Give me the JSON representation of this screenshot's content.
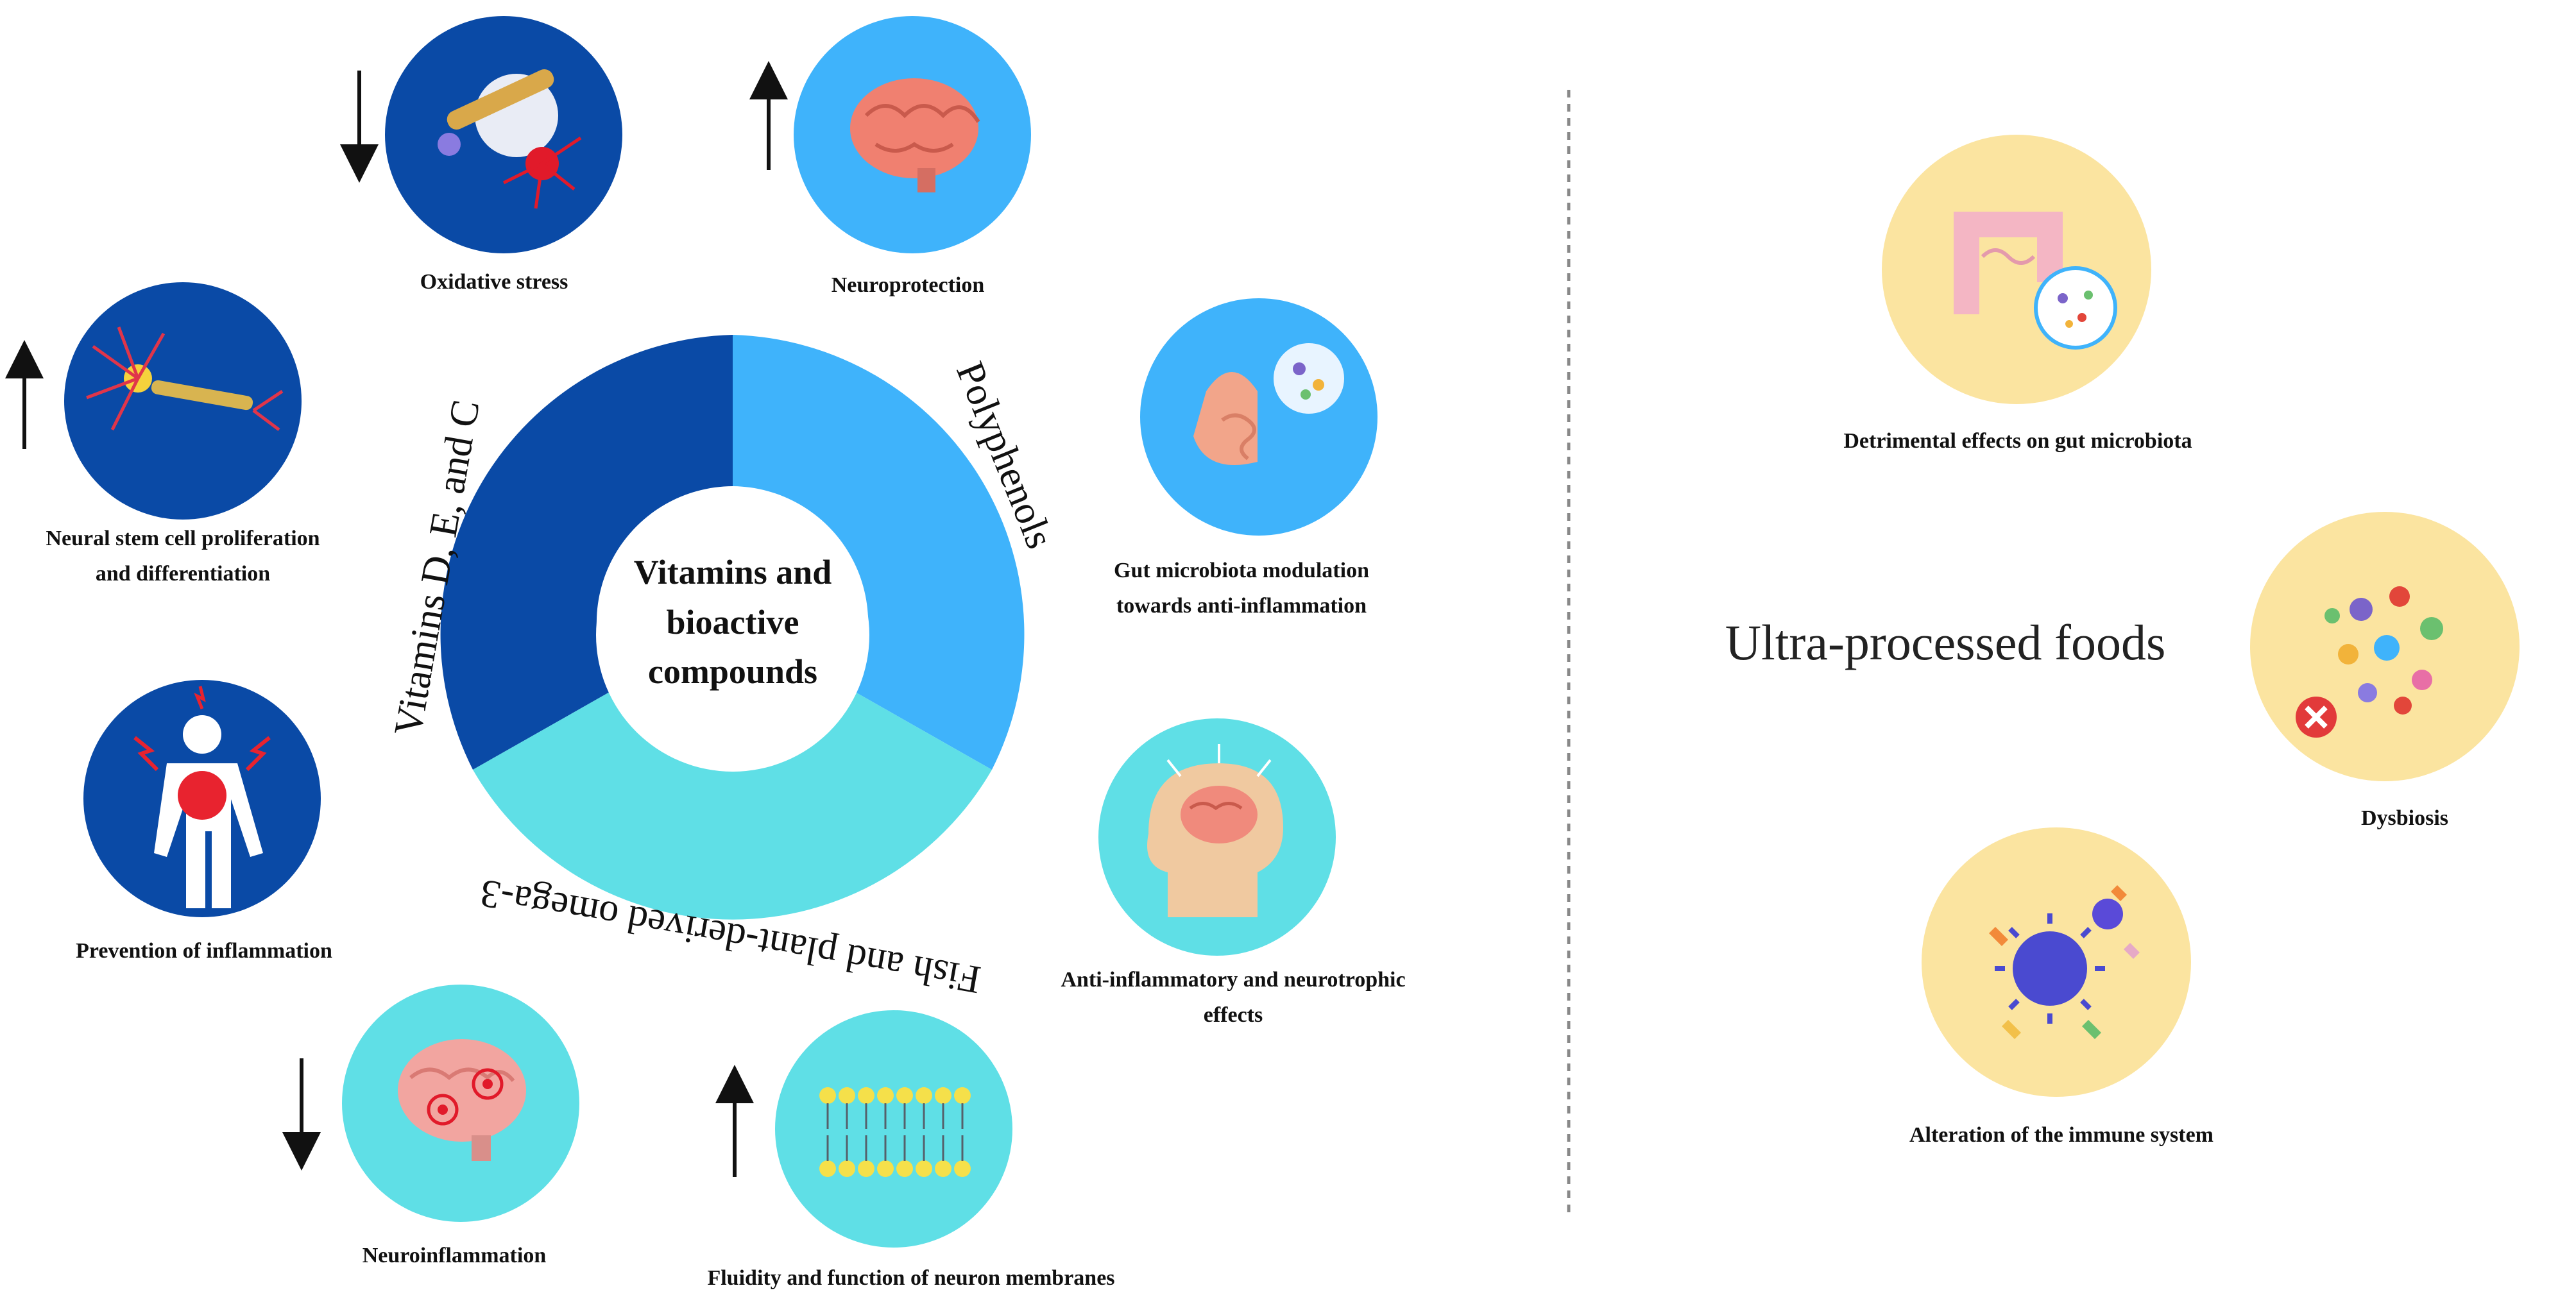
{
  "center": {
    "line1": "Vitamins and",
    "line2": "bioactive",
    "line3": "compounds"
  },
  "ring": {
    "vitamins": "Vitamins D, E, and C",
    "polyphenols": "Polyphenols",
    "omega3": "Fish and plant-derived omega-3"
  },
  "colors": {
    "vitamins_segment": "#0a4aa6",
    "polyphenols_segment": "#3fb3fb",
    "omega3_segment": "#5fdfe6",
    "upf_circle": "#fbe4a0"
  },
  "effects": {
    "oxidative_stress": {
      "label": "Oxidative stress",
      "arrow": "down",
      "icon": "neuron-damage-icon"
    },
    "neuroprotection": {
      "label": "Neuroprotection",
      "arrow": "up",
      "icon": "brain-icon"
    },
    "neural_stem": {
      "line1": "Neural stem cell proliferation",
      "line2": "and differentiation",
      "arrow": "up",
      "icon": "neuron-icon"
    },
    "gut_modulation": {
      "line1": "Gut microbiota modulation",
      "line2": "towards anti-inflammation",
      "icon": "gut-microbiota-icon"
    },
    "prevention_inflammation": {
      "label": "Prevention of inflammation",
      "icon": "body-inflammation-icon"
    },
    "anti_inflammatory": {
      "line1": "Anti-inflammatory and neurotrophic",
      "line2": "effects",
      "icon": "head-brain-icon"
    },
    "neuroinflammation": {
      "label": "Neuroinflammation",
      "arrow": "down",
      "icon": "inflamed-brain-icon"
    },
    "membrane_fluidity": {
      "label": "Fluidity and function of neuron membranes",
      "arrow": "up",
      "icon": "lipid-bilayer-icon"
    }
  },
  "upf": {
    "title": "Ultra-processed foods",
    "gut_effects": "Detrimental effects on gut microbiota",
    "dysbiosis": "Dysbiosis",
    "immune": "Alteration of the immune system"
  }
}
